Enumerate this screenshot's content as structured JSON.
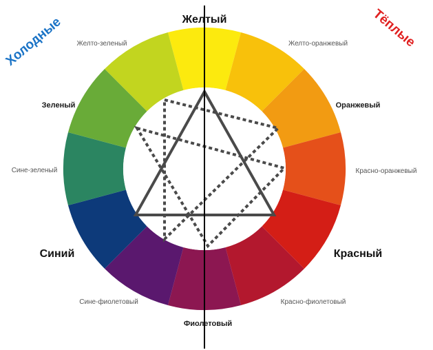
{
  "corners": {
    "cold": {
      "text": "Холодные",
      "color": "#1a73c6"
    },
    "warm": {
      "text": "Тёплые",
      "color": "#e02020"
    }
  },
  "wheel": {
    "segments": [
      {
        "name": "Желтый",
        "color": "#fcea0e",
        "rank": "primary"
      },
      {
        "name": "Желто-оранжевый",
        "color": "#f8c10b",
        "rank": "tertiary"
      },
      {
        "name": "Оранжевый",
        "color": "#f29b12",
        "rank": "secondary"
      },
      {
        "name": "Красно-оранжевый",
        "color": "#e5501a",
        "rank": "tertiary"
      },
      {
        "name": "Красный",
        "color": "#d41e16",
        "rank": "primary"
      },
      {
        "name": "Красно-фиолетовый",
        "color": "#b3182e",
        "rank": "tertiary"
      },
      {
        "name": "Фиолетовый",
        "color": "#8c1751",
        "rank": "secondary"
      },
      {
        "name": "Сине-фиолетовый",
        "color": "#5a186e",
        "rank": "tertiary"
      },
      {
        "name": "Синий",
        "color": "#0d3a7a",
        "rank": "primary"
      },
      {
        "name": "Сине-зеленый",
        "color": "#2b8561",
        "rank": "tertiary"
      },
      {
        "name": "Зеленый",
        "color": "#69ab38",
        "rank": "secondary"
      },
      {
        "name": "Желто-зеленый",
        "color": "#c2d51f",
        "rank": "tertiary"
      }
    ]
  },
  "overlay": {
    "stroke_color": "#4a4a4a",
    "divider_color": "#000000"
  }
}
